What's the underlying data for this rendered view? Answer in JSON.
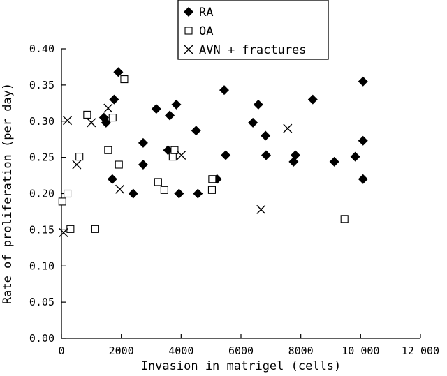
{
  "chart_data": {
    "type": "scatter",
    "title": "",
    "xlabel": "Invasion in matrigel (cells)",
    "ylabel": "Rate of proliferation (per day)",
    "xlim": [
      0,
      12000
    ],
    "ylim": [
      0,
      0.4
    ],
    "x_ticks": [
      0,
      2000,
      4000,
      6000,
      8000,
      10000,
      12000
    ],
    "x_tick_labels": [
      "0",
      "2000",
      "4000",
      "6000",
      "8000",
      "10 000",
      "12 000"
    ],
    "y_ticks": [
      0,
      0.05,
      0.1,
      0.15,
      0.2,
      0.25,
      0.3,
      0.35,
      0.4
    ],
    "y_tick_labels": [
      "0.00",
      "0.05",
      "0.10",
      "0.15",
      "0.20",
      "0.25",
      "0.30",
      "0.35",
      "0.40"
    ],
    "grid": false,
    "legend_position": "top-center",
    "series": [
      {
        "name": "RA",
        "marker": "filled-diamond",
        "color": "#000000",
        "points": [
          [
            1420,
            0.305
          ],
          [
            1490,
            0.298
          ],
          [
            1760,
            0.33
          ],
          [
            1900,
            0.368
          ],
          [
            1700,
            0.22
          ],
          [
            2400,
            0.2
          ],
          [
            2730,
            0.27
          ],
          [
            2730,
            0.24
          ],
          [
            3170,
            0.317
          ],
          [
            3560,
            0.26
          ],
          [
            3620,
            0.308
          ],
          [
            3840,
            0.323
          ],
          [
            3930,
            0.2
          ],
          [
            4500,
            0.287
          ],
          [
            4560,
            0.2
          ],
          [
            5200,
            0.22
          ],
          [
            5440,
            0.343
          ],
          [
            5490,
            0.253
          ],
          [
            6400,
            0.298
          ],
          [
            6580,
            0.323
          ],
          [
            6820,
            0.28
          ],
          [
            6840,
            0.253
          ],
          [
            7760,
            0.244
          ],
          [
            7820,
            0.253
          ],
          [
            8400,
            0.33
          ],
          [
            9120,
            0.244
          ],
          [
            9820,
            0.251
          ],
          [
            10080,
            0.355
          ],
          [
            10080,
            0.273
          ],
          [
            10080,
            0.22
          ]
        ]
      },
      {
        "name": "OA",
        "marker": "open-square",
        "color": "#000000",
        "points": [
          [
            30,
            0.189
          ],
          [
            200,
            0.2
          ],
          [
            300,
            0.151
          ],
          [
            600,
            0.251
          ],
          [
            860,
            0.309
          ],
          [
            1130,
            0.151
          ],
          [
            1560,
            0.26
          ],
          [
            1710,
            0.305
          ],
          [
            1920,
            0.24
          ],
          [
            2100,
            0.358
          ],
          [
            3230,
            0.216
          ],
          [
            3440,
            0.205
          ],
          [
            3720,
            0.251
          ],
          [
            3780,
            0.26
          ],
          [
            5030,
            0.205
          ],
          [
            5040,
            0.22
          ],
          [
            9460,
            0.165
          ]
        ]
      },
      {
        "name": "AVN + fractures",
        "marker": "cross",
        "color": "#000000",
        "points": [
          [
            70,
            0.146
          ],
          [
            200,
            0.301
          ],
          [
            510,
            0.24
          ],
          [
            1000,
            0.298
          ],
          [
            1560,
            0.318
          ],
          [
            1950,
            0.206
          ],
          [
            4010,
            0.253
          ],
          [
            6670,
            0.178
          ],
          [
            7560,
            0.29
          ]
        ]
      }
    ]
  }
}
